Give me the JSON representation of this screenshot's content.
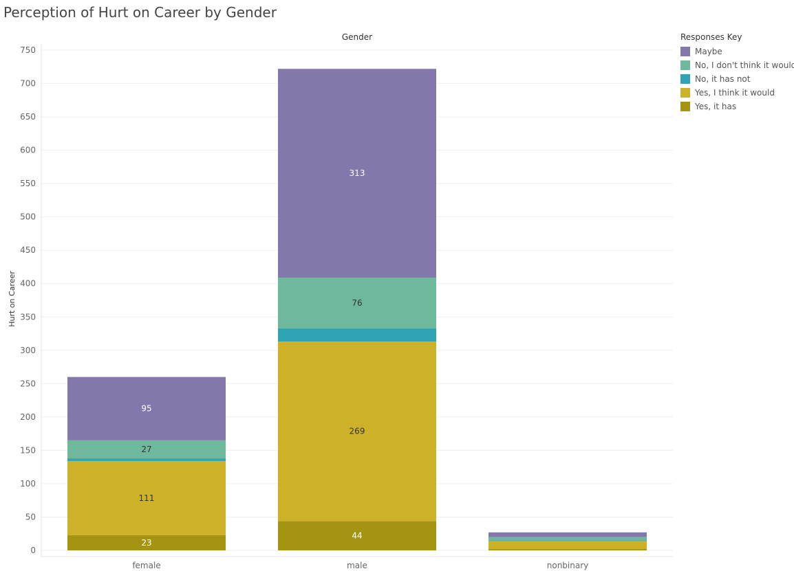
{
  "chart_data": {
    "type": "bar",
    "stacked": true,
    "title": "Perception of Hurt on Career by Gender",
    "column_header": "Gender",
    "xlabel": "",
    "ylabel": "Hurt on Career",
    "ylim": [
      0,
      750
    ],
    "yticks": [
      0,
      50,
      100,
      150,
      200,
      250,
      300,
      350,
      400,
      450,
      500,
      550,
      600,
      650,
      700,
      750
    ],
    "categories": [
      "female",
      "male",
      "nonbinary"
    ],
    "grid": true,
    "legend_title": "Responses Key",
    "legend_position": "right",
    "series": [
      {
        "name": "Yes, it has",
        "color": "#a59412",
        "values": [
          23,
          44,
          2
        ],
        "labels": [
          "23",
          "44",
          ""
        ],
        "label_color": "#ffffff"
      },
      {
        "name": "Yes, I think it would",
        "color": "#cdb229",
        "values": [
          111,
          269,
          12
        ],
        "labels": [
          "111",
          "269",
          ""
        ],
        "label_color": "#333333"
      },
      {
        "name": "No, it has not",
        "color": "#31a4b4",
        "values": [
          4,
          20,
          1
        ],
        "labels": [
          "",
          "",
          ""
        ],
        "label_color": "#333333"
      },
      {
        "name": "No, I don't think it would",
        "color": "#6eb99b",
        "values": [
          27,
          76,
          5
        ],
        "labels": [
          "27",
          "76",
          ""
        ],
        "label_color": "#333333"
      },
      {
        "name": "Maybe",
        "color": "#8377ab",
        "values": [
          95,
          313,
          7
        ],
        "labels": [
          "95",
          "313",
          ""
        ],
        "label_color": "#ffffff"
      }
    ],
    "legend_order": [
      "Maybe",
      "No, I don't think it would",
      "No, it has not",
      "Yes, I think it would",
      "Yes, it has"
    ]
  }
}
